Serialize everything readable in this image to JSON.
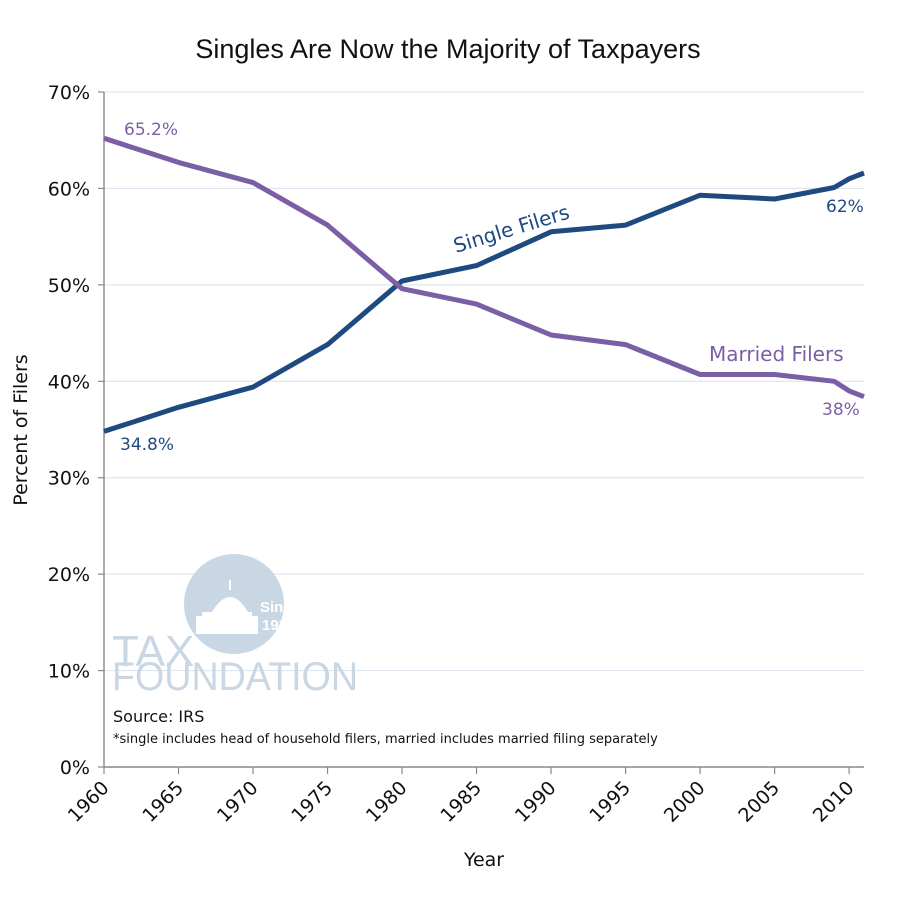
{
  "chart_data": {
    "type": "line",
    "title": "Singles Are Now the Majority of Taxpayers",
    "xlabel": "Year",
    "ylabel": "Percent of Filers",
    "xlim": [
      1960,
      2011
    ],
    "ylim": [
      0,
      70
    ],
    "x_ticks": [
      1960,
      1965,
      1970,
      1975,
      1980,
      1985,
      1990,
      1995,
      2000,
      2005,
      2010
    ],
    "y_ticks": [
      0,
      10,
      20,
      30,
      40,
      50,
      60,
      70
    ],
    "y_tick_labels": [
      "0%",
      "10%",
      "20%",
      "30%",
      "40%",
      "50%",
      "60%",
      "70%"
    ],
    "grid": true,
    "series": [
      {
        "name": "Single Filers",
        "color": "#1f4a80",
        "x": [
          1960,
          1965,
          1970,
          1975,
          1980,
          1985,
          1990,
          1995,
          2000,
          2005,
          2009,
          2010,
          2011
        ],
        "values": [
          34.8,
          37.3,
          39.4,
          43.8,
          50.4,
          52.0,
          55.5,
          56.2,
          59.3,
          58.9,
          60.1,
          61.0,
          61.6
        ]
      },
      {
        "name": "Married Filers",
        "color": "#7b5fa6",
        "x": [
          1960,
          1965,
          1970,
          1975,
          1980,
          1985,
          1990,
          1995,
          2000,
          2005,
          2009,
          2010,
          2011
        ],
        "values": [
          65.2,
          62.7,
          60.6,
          56.2,
          49.6,
          48.0,
          44.8,
          43.8,
          40.7,
          40.7,
          40.0,
          39.0,
          38.4
        ]
      }
    ],
    "annotations": {
      "married_start": "65.2%",
      "single_start": "34.8%",
      "single_end": "62%",
      "married_end": "38%",
      "single_series_label": "Single Filers",
      "married_series_label": "Married Filers"
    },
    "source": "Source: IRS",
    "footnote": "*single includes head of household filers, married includes married filing separately"
  },
  "logo": {
    "line1": "TAX",
    "line2": "FOUNDATION",
    "badge_line1": "Since",
    "badge_line2": "1937",
    "color": "#c9d6e4"
  }
}
